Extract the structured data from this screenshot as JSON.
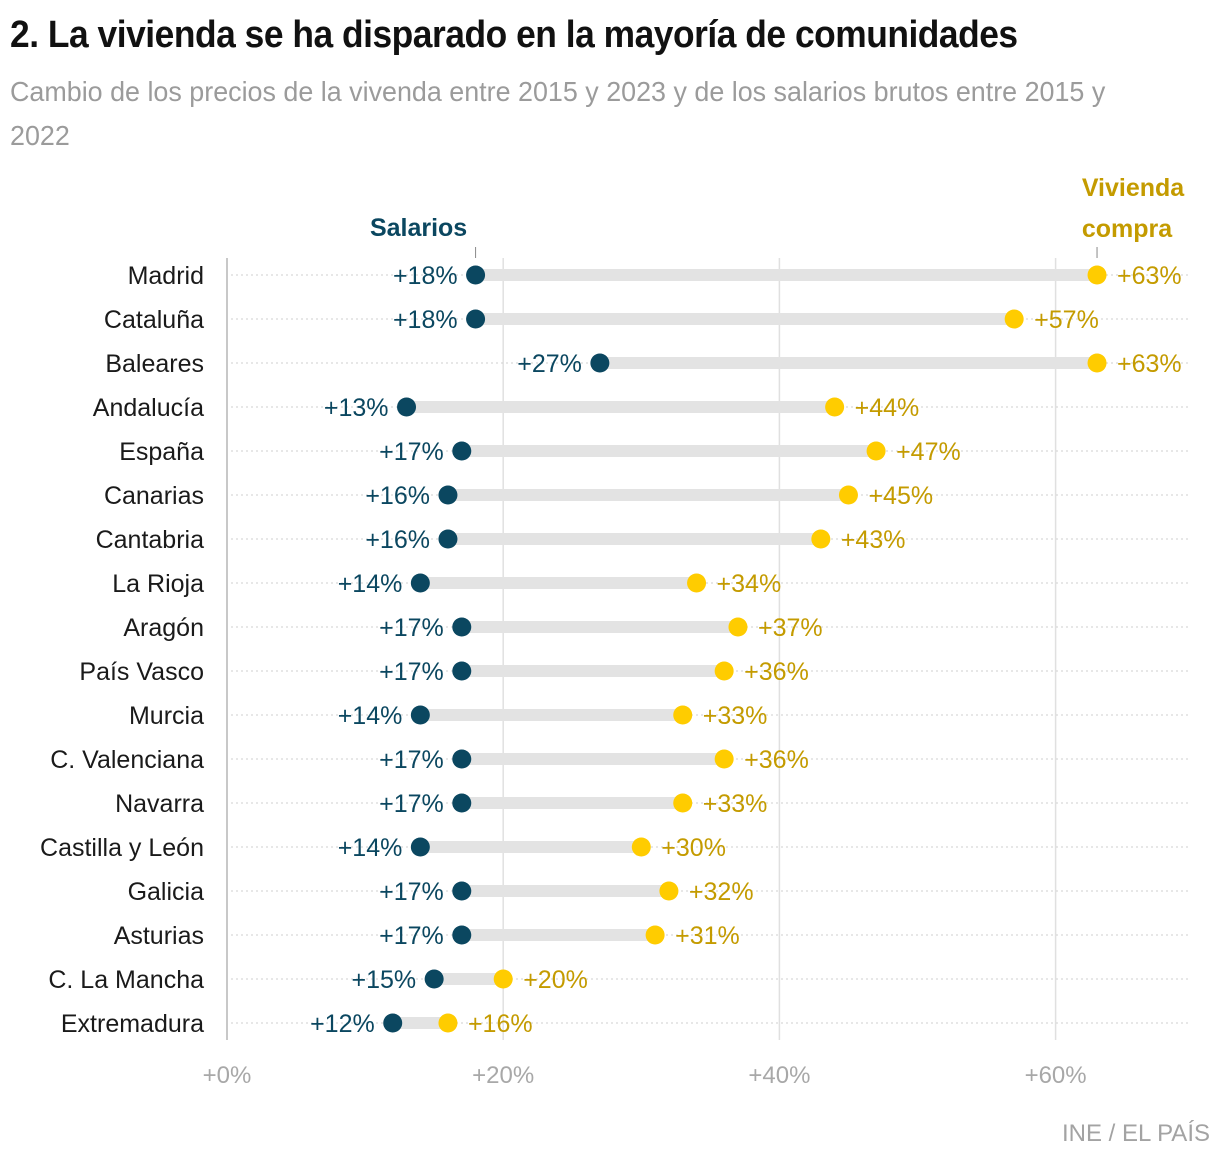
{
  "header": {
    "title": "2. La vivienda se ha disparado en la mayoría de comunidades",
    "subtitle": "Cambio de los precios de la vivenda entre 2015 y 2023 y de los salarios brutos entre 2015 y 2022"
  },
  "footer": {
    "source": "INE / EL PAÍS"
  },
  "colors": {
    "salarios": "#0b4760",
    "vivienda_dot": "#ffcc00",
    "vivienda_text": "#c49b00",
    "bar": "#e3e3e3",
    "grid": "#e0e0e0",
    "axis_text": "#a8a8a8",
    "label_text": "#1a1a1a"
  },
  "chart_data": {
    "type": "dumbbell",
    "title": "2. La vivienda se ha disparado en la mayoría de comunidades",
    "subtitle": "Cambio de los precios de la vivenda entre 2015 y 2023 y de los salarios brutos entre 2015 y 2022",
    "xlabel": "",
    "ylabel": "",
    "xlim": [
      0,
      70
    ],
    "x_ticks": [
      0,
      20,
      40,
      60
    ],
    "x_tick_labels": [
      "+0%",
      "+20%",
      "+40%",
      "+60%"
    ],
    "grid": true,
    "legend": {
      "placement": "top-annotations",
      "entries": [
        "Salarios",
        "Vivienda compra"
      ]
    },
    "categories": [
      "Madrid",
      "Cataluña",
      "Baleares",
      "Andalucía",
      "España",
      "Canarias",
      "Cantabria",
      "La Rioja",
      "Aragón",
      "País Vasco",
      "Murcia",
      "C. Valenciana",
      "Navarra",
      "Castilla y León",
      "Galicia",
      "Asturias",
      "C. La Mancha",
      "Extremadura"
    ],
    "series": [
      {
        "name": "Salarios",
        "values": [
          18,
          18,
          27,
          13,
          17,
          16,
          16,
          14,
          17,
          17,
          14,
          17,
          17,
          14,
          17,
          17,
          15,
          12
        ],
        "labels": [
          "+18%",
          "+18%",
          "+27%",
          "+13%",
          "+17%",
          "+16%",
          "+16%",
          "+14%",
          "+17%",
          "+17%",
          "+14%",
          "+17%",
          "+17%",
          "+14%",
          "+17%",
          "+17%",
          "+15%",
          "+12%"
        ]
      },
      {
        "name": "Vivienda compra",
        "values": [
          63,
          57,
          63,
          44,
          47,
          45,
          43,
          34,
          37,
          36,
          33,
          36,
          33,
          30,
          32,
          31,
          20,
          16
        ],
        "labels": [
          "+63%",
          "+57%",
          "+63%",
          "+44%",
          "+47%",
          "+45%",
          "+43%",
          "+34%",
          "+37%",
          "+36%",
          "+33%",
          "+36%",
          "+33%",
          "+30%",
          "+32%",
          "+31%",
          "+20%",
          "+16%"
        ]
      }
    ],
    "annotations": {
      "salarios_label": "Salarios",
      "vivienda_label_line1": "Vivienda",
      "vivienda_label_line2": "compra"
    }
  }
}
